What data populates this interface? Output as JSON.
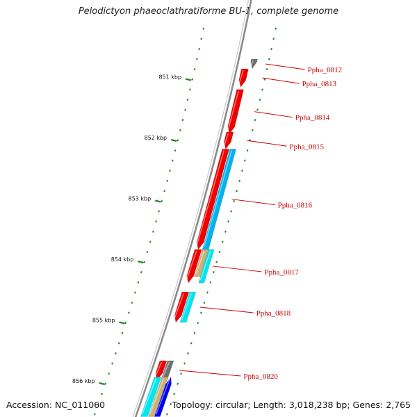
{
  "title": "Pelodictyon phaeoclathratiforme BU-1, complete genome",
  "accession_text": "Accession: NC_011060",
  "stats_text": "Topology: circular; Length: 3,018,238 bp; Genes: 2,765",
  "scale_labels": [
    {
      "text": "851 kbp",
      "kbp": 851
    },
    {
      "text": "852 kbp",
      "kbp": 852
    },
    {
      "text": "853 kbp",
      "kbp": 853
    },
    {
      "text": "854 kbp",
      "kbp": 854
    },
    {
      "text": "855 kbp",
      "kbp": 855
    },
    {
      "text": "856 kbp",
      "kbp": 856
    }
  ],
  "colors": {
    "backbone": "#8a8a8a",
    "forward_cds": "#ee0000",
    "rna_cyan": "#00e5ee",
    "rna_blue": "#00b2ee",
    "tan": "#c8b27a",
    "gray": "#707070",
    "navy": "#0000ee",
    "tick": "#228b22",
    "label": "#cc0000"
  },
  "genes": [
    {
      "label": "Ppha_0812",
      "start_kbp": 850.72,
      "end_kbp": 850.88,
      "track": 1,
      "color": "gray",
      "strand": "-"
    },
    {
      "label": "Ppha_0813",
      "start_kbp": 850.88,
      "end_kbp": 851.18,
      "track": 0,
      "color": "forward_cds",
      "strand": "-"
    },
    {
      "label": "Ppha_0814",
      "start_kbp": 851.22,
      "end_kbp": 851.95,
      "track": 0,
      "color": "forward_cds",
      "strand": "-"
    },
    {
      "label": "Ppha_0815",
      "start_kbp": 851.92,
      "end_kbp": 852.2,
      "track": 0,
      "color": "forward_cds",
      "strand": "-"
    },
    {
      "label": "Ppha_0816",
      "start_kbp": 852.2,
      "end_kbp": 853.85,
      "track": 0,
      "color": "forward_cds",
      "strand": "-"
    },
    {
      "label": "",
      "start_kbp": 852.2,
      "end_kbp": 853.85,
      "track": 1,
      "color": "rna_blue",
      "strand": "."
    },
    {
      "label": "Ppha_0817",
      "start_kbp": 853.85,
      "end_kbp": 854.4,
      "track": 0,
      "color": "forward_cds",
      "strand": "-"
    },
    {
      "label": "",
      "start_kbp": 853.85,
      "end_kbp": 854.3,
      "track": 1,
      "color": "tan",
      "strand": "."
    },
    {
      "label": "",
      "start_kbp": 853.85,
      "end_kbp": 854.4,
      "track": 2,
      "color": "rna_cyan",
      "strand": "."
    },
    {
      "label": "Ppha_0818",
      "start_kbp": 854.55,
      "end_kbp": 855.05,
      "track": 0,
      "color": "forward_cds",
      "strand": "-"
    },
    {
      "label": "",
      "start_kbp": 854.55,
      "end_kbp": 855.05,
      "track": 1,
      "color": "rna_cyan",
      "strand": "."
    },
    {
      "label": "Ppha_0820",
      "start_kbp": 855.68,
      "end_kbp": 856.0,
      "track": 0,
      "color": "forward_cds",
      "strand": "-"
    },
    {
      "label": "",
      "start_kbp": 855.68,
      "end_kbp": 856.0,
      "track": 1,
      "color": "gray",
      "strand": "."
    },
    {
      "label": "",
      "start_kbp": 855.95,
      "end_kbp": 856.6,
      "track": 0,
      "color": "rna_cyan",
      "strand": "."
    },
    {
      "label": "",
      "start_kbp": 855.95,
      "end_kbp": 856.6,
      "track": 1,
      "color": "tan",
      "strand": "."
    },
    {
      "label": "",
      "start_kbp": 855.95,
      "end_kbp": 856.6,
      "track": 2,
      "color": "navy",
      "strand": "+"
    }
  ]
}
